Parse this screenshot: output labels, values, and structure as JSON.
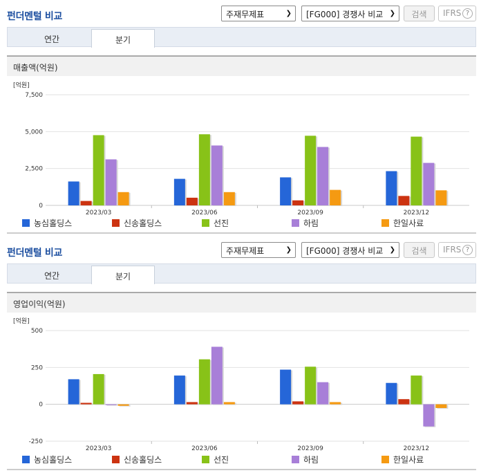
{
  "colors": [
    "#2566d8",
    "#cc3311",
    "#88c218",
    "#a87fd8",
    "#f59a12"
  ],
  "sections": [
    {
      "title": "펀더멘털 비교",
      "select1": "주재무제표",
      "select2": "[FG000] 경쟁사 비교",
      "search_button": "검색",
      "ifrs_label": "IFRS",
      "help_icon_text": "?",
      "tabs": [
        "연간",
        "분기"
      ],
      "chart_label": "매출액(억원)"
    },
    {
      "title": "펀더멘털 비교",
      "select1": "주재무제표",
      "select2": "[FG000] 경쟁사 비교",
      "search_button": "검색",
      "ifrs_label": "IFRS",
      "help_icon_text": "?",
      "tabs": [
        "연간",
        "분기"
      ],
      "chart_label": "영업이익(억원)"
    }
  ],
  "chart_data": [
    {
      "type": "bar",
      "title": "매출액(억원)",
      "unit_label": "[억원]",
      "categories": [
        "2023/03",
        "2023/06",
        "2023/09",
        "2023/12"
      ],
      "ylim": [
        0,
        7500
      ],
      "yticks": [
        0,
        2500,
        5000,
        7500
      ],
      "ytick_labels": [
        "0",
        "2,500",
        "5,000",
        "7,500"
      ],
      "grid": true,
      "legend": "bottom",
      "series": [
        {
          "name": "농심홀딩스",
          "values": [
            1620,
            1800,
            1900,
            2320
          ]
        },
        {
          "name": "신송홀딩스",
          "values": [
            300,
            520,
            340,
            640
          ]
        },
        {
          "name": "선진",
          "values": [
            4760,
            4820,
            4720,
            4660
          ]
        },
        {
          "name": "하림",
          "values": [
            3120,
            4060,
            3960,
            2880
          ]
        },
        {
          "name": "한일사료",
          "values": [
            900,
            900,
            1050,
            1020
          ]
        }
      ]
    },
    {
      "type": "bar",
      "title": "영업이익(억원)",
      "unit_label": "[억원]",
      "categories": [
        "2023/03",
        "2023/06",
        "2023/09",
        "2023/12"
      ],
      "ylim": [
        -250,
        500
      ],
      "yticks": [
        -250,
        0,
        250,
        500
      ],
      "ytick_labels": [
        "-250",
        "0",
        "250",
        "500"
      ],
      "grid": true,
      "legend": "bottom",
      "series": [
        {
          "name": "농심홀딩스",
          "values": [
            170,
            195,
            235,
            145
          ]
        },
        {
          "name": "신송홀딩스",
          "values": [
            10,
            15,
            20,
            35
          ]
        },
        {
          "name": "선진",
          "values": [
            205,
            305,
            255,
            195
          ]
        },
        {
          "name": "하림",
          "values": [
            -5,
            390,
            150,
            -150
          ]
        },
        {
          "name": "한일사료",
          "values": [
            -10,
            15,
            15,
            -25
          ]
        }
      ]
    }
  ]
}
